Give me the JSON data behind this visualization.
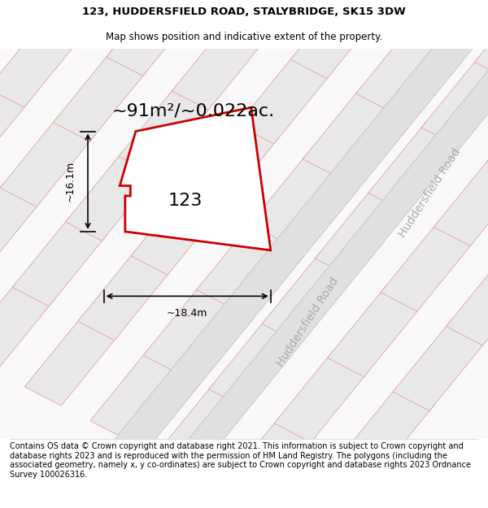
{
  "title_line1": "123, HUDDERSFIELD ROAD, STALYBRIDGE, SK15 3DW",
  "title_line2": "Map shows position and indicative extent of the property.",
  "area_label": "~91m²/~0.022ac.",
  "width_label": "~18.4m",
  "height_label": "~16.1m",
  "number_label": "123",
  "road_label_1": "Huddersfield Road",
  "road_label_2": "Huddersfield Road",
  "footer_text": "Contains OS data © Crown copyright and database right 2021. This information is subject to Crown copyright and database rights 2023 and is reproduced with the permission of HM Land Registry. The polygons (including the associated geometry, namely x, y co-ordinates) are subject to Crown copyright and database rights 2023 Ordnance Survey 100026316.",
  "bg_color": "#ffffff",
  "map_bg": "#f5f5f5",
  "polygon_color": "#cc0000",
  "polygon_fill": "#ffffff",
  "other_plot_color": "#e8e8e8",
  "other_plot_border": "#e8a0a0",
  "road_stripe_color": "#d8d8d8",
  "title_fontsize": 9.5,
  "subtitle_fontsize": 8.5,
  "area_fontsize": 16,
  "dim_fontsize": 9,
  "number_fontsize": 16,
  "road_label_fontsize": 10,
  "footer_fontsize": 7
}
